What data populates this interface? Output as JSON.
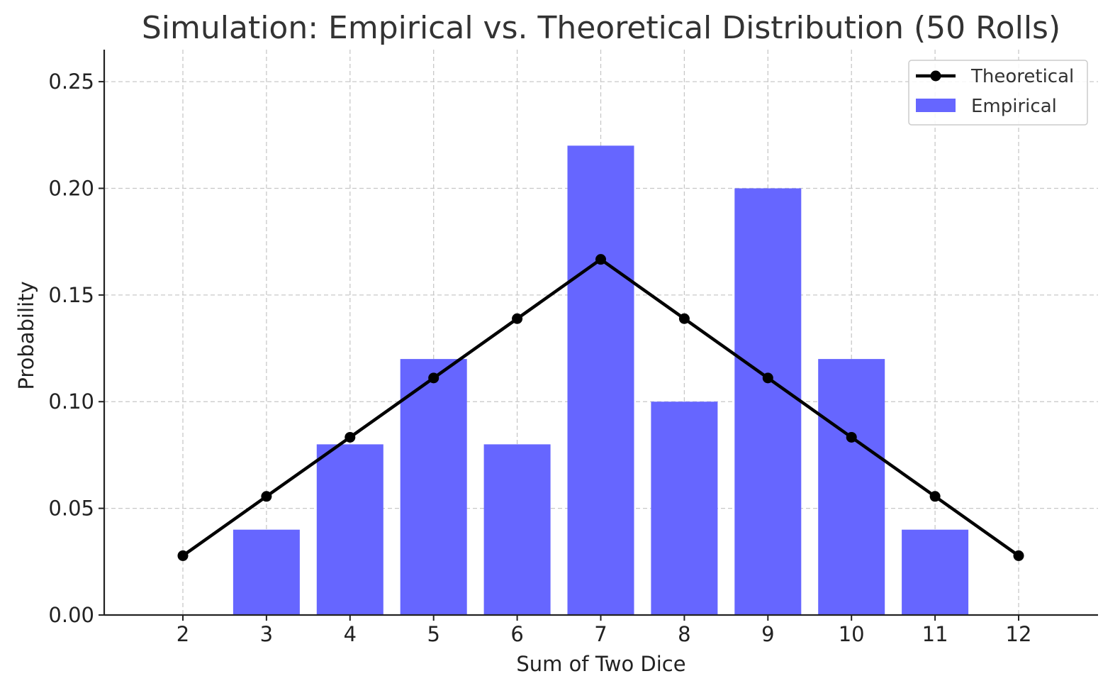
{
  "chart_data": {
    "type": "bar",
    "title": "Simulation: Empirical vs. Theoretical Distribution (50 Rolls)",
    "xlabel": "Sum of Two Dice",
    "ylabel": "Probability",
    "categories": [
      "2",
      "3",
      "4",
      "5",
      "6",
      "7",
      "8",
      "9",
      "10",
      "11",
      "12"
    ],
    "ylim": [
      0,
      0.265
    ],
    "yticks": [
      "0.00",
      "0.05",
      "0.10",
      "0.15",
      "0.20",
      "0.25"
    ],
    "ytick_values": [
      0,
      0.05,
      0.1,
      0.15,
      0.2,
      0.25
    ],
    "grid": true,
    "legend_position": "top-right",
    "series": [
      {
        "name": "Empirical",
        "kind": "bar",
        "color": "#6666ff",
        "values": [
          0.0,
          0.04,
          0.08,
          0.12,
          0.08,
          0.22,
          0.1,
          0.2,
          0.12,
          0.04,
          0.0
        ]
      },
      {
        "name": "Theoretical",
        "kind": "line",
        "color": "#000000",
        "values": [
          0.0278,
          0.0556,
          0.0833,
          0.1111,
          0.1389,
          0.1667,
          0.1389,
          0.1111,
          0.0833,
          0.0556,
          0.0278
        ]
      }
    ]
  }
}
